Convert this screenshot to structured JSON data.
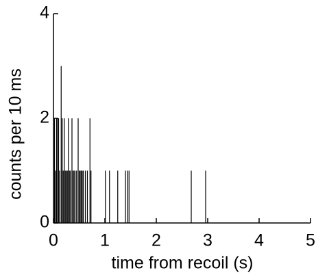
{
  "chart_data": {
    "type": "bar",
    "xlabel": "time from recoil (s)",
    "ylabel": "counts per 10 ms",
    "x": [
      0.02,
      0.04,
      0.06,
      0.08,
      0.1,
      0.12,
      0.15,
      0.17,
      0.19,
      0.21,
      0.23,
      0.25,
      0.27,
      0.29,
      0.31,
      0.33,
      0.36,
      0.38,
      0.4,
      0.42,
      0.45,
      0.48,
      0.5,
      0.52,
      0.54,
      0.56,
      0.58,
      0.62,
      0.66,
      0.71,
      0.73,
      1.01,
      1.09,
      1.25,
      1.4,
      1.44,
      1.47,
      2.68,
      2.96
    ],
    "values": [
      2,
      1,
      2,
      2,
      2,
      1,
      3,
      2,
      1,
      2,
      1,
      1,
      1,
      2,
      1,
      1,
      2,
      1,
      1,
      1,
      1,
      2,
      1,
      1,
      1,
      1,
      1,
      1,
      1,
      2,
      1,
      1,
      1,
      1,
      1,
      1,
      1,
      1,
      1
    ],
    "color": "#000000",
    "xlim": [
      0,
      5
    ],
    "xticks": [
      0,
      1,
      2,
      3,
      4,
      5
    ],
    "ylim": [
      0,
      4
    ],
    "yticks": [
      0,
      2,
      4
    ]
  }
}
